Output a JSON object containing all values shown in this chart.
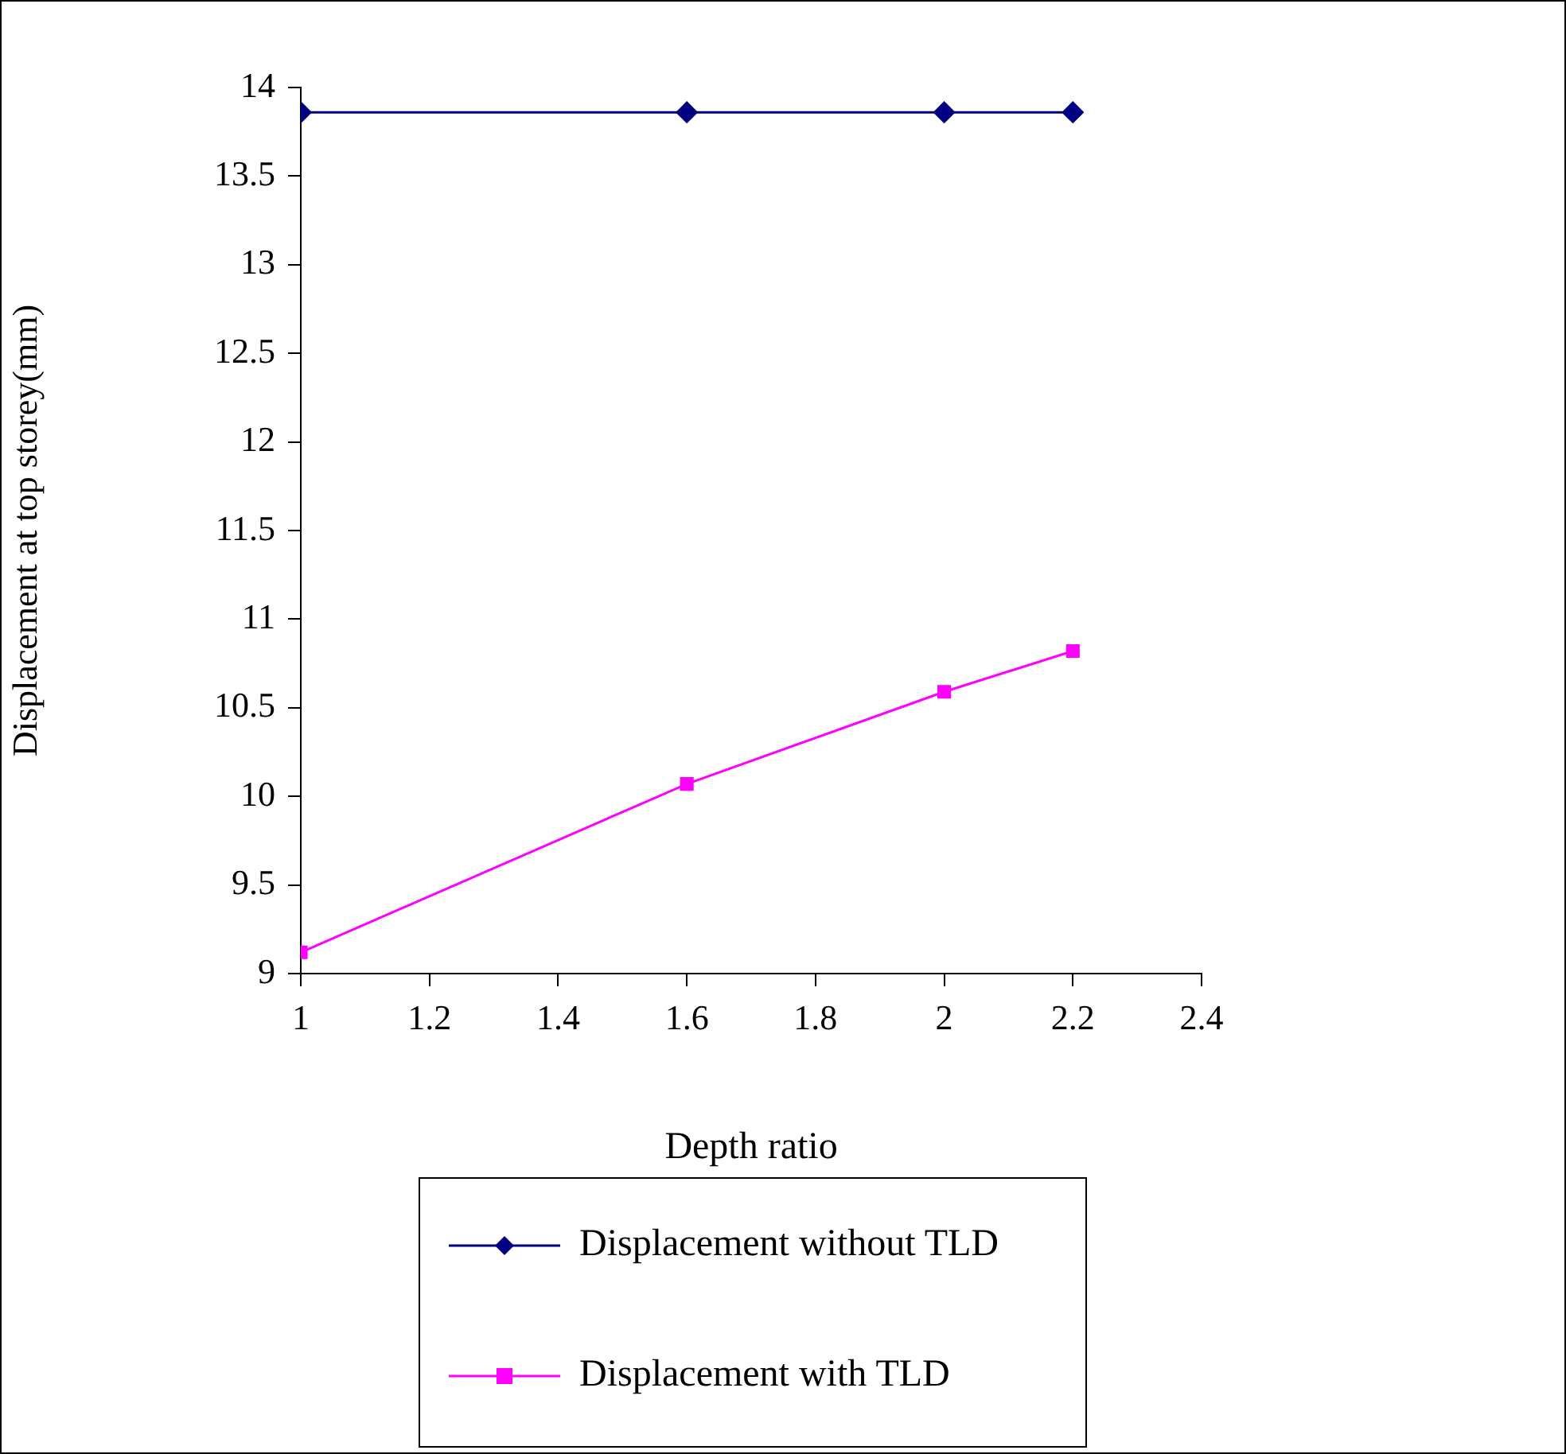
{
  "chart_data": {
    "type": "line",
    "xlabel": "Depth ratio",
    "ylabel": "Displacement at top storey(mm)",
    "x": [
      1,
      1.6,
      2,
      2.2
    ],
    "series": [
      {
        "name": "Displacement without TLD",
        "color": "#000080",
        "marker": "diamond",
        "values": [
          13.86,
          13.86,
          13.86,
          13.86
        ]
      },
      {
        "name": "Displacement with TLD",
        "color": "#ff00ff",
        "marker": "square",
        "values": [
          9.12,
          10.07,
          10.59,
          10.82
        ]
      }
    ],
    "xlim": [
      1,
      2.4
    ],
    "xticks": [
      1,
      1.2,
      1.4,
      1.6,
      1.8,
      2,
      2.2,
      2.4
    ],
    "ylim": [
      9,
      14
    ],
    "yticks": [
      9,
      9.5,
      10,
      10.5,
      11,
      11.5,
      12,
      12.5,
      13,
      13.5,
      14
    ],
    "grid": false,
    "legend": "bottom",
    "line_style": "solid"
  }
}
